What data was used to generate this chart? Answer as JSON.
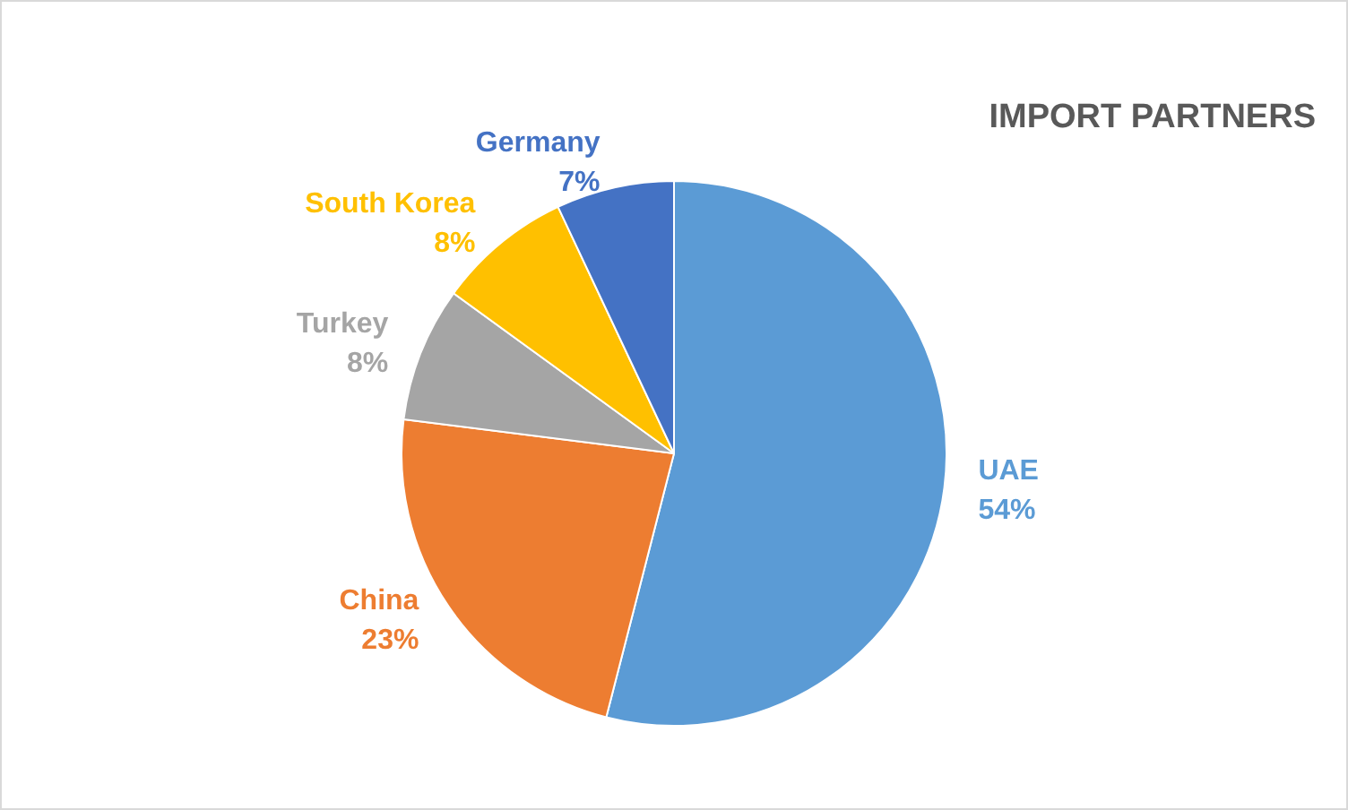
{
  "chart_data": {
    "type": "pie",
    "title": "IMPORT PARTNERS",
    "categories": [
      "UAE",
      "China",
      "Turkey",
      "South Korea",
      "Germany"
    ],
    "values": [
      54,
      23,
      8,
      8,
      7
    ],
    "colors": [
      "#5b9bd5",
      "#ed7d31",
      "#a5a5a5",
      "#ffc000",
      "#4472c4"
    ],
    "value_labels": [
      "54%",
      "23%",
      "8%",
      "8%",
      "7%"
    ]
  }
}
